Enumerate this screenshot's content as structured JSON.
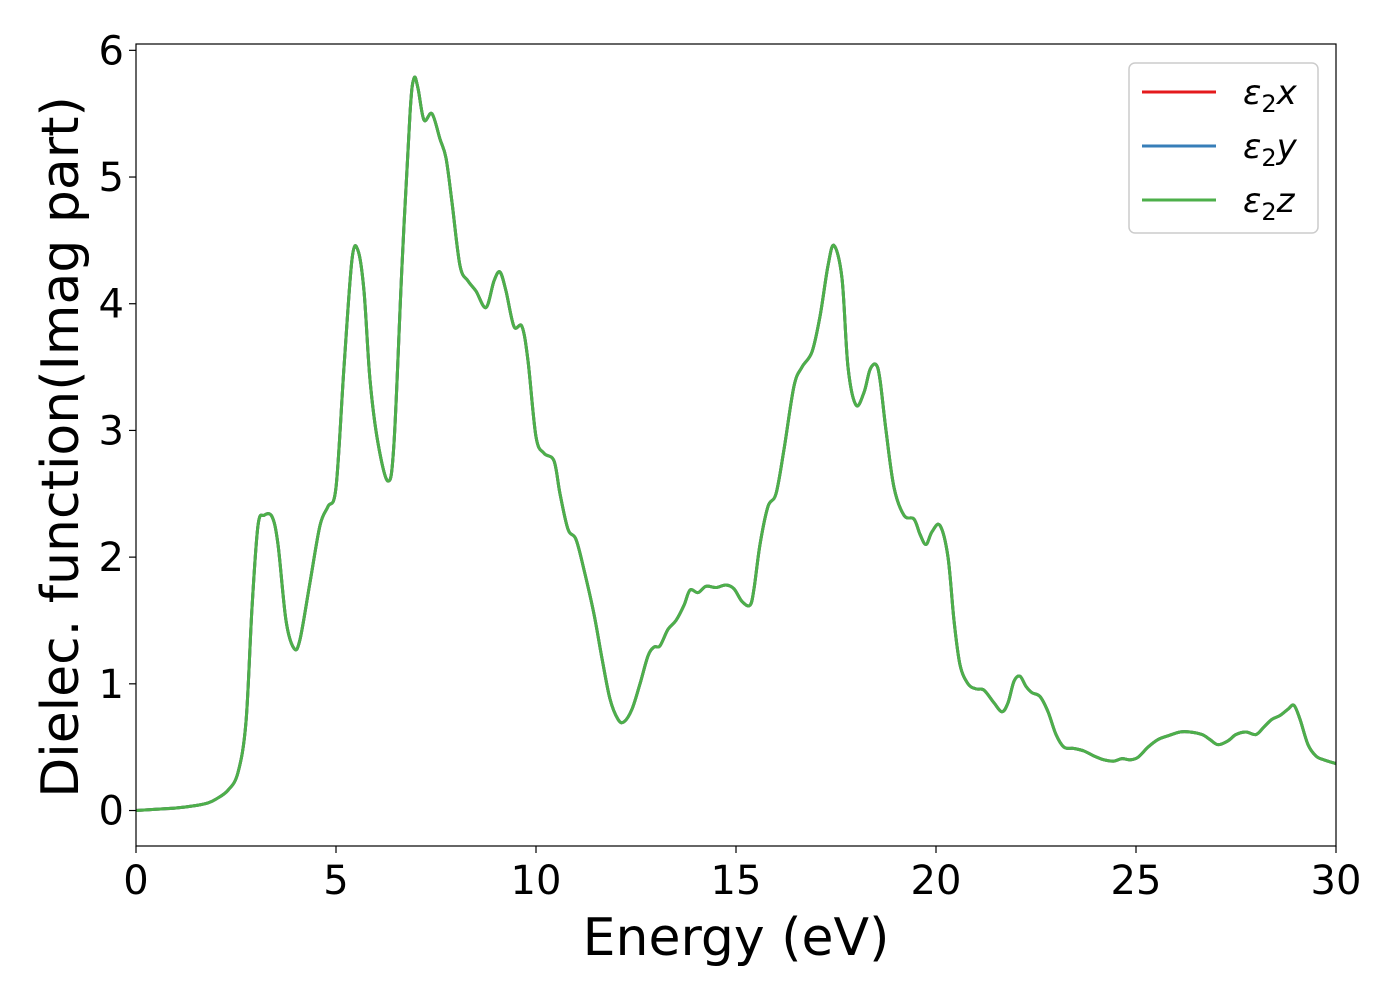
{
  "chart_data": {
    "type": "line",
    "title": "",
    "xlabel": "Energy (eV)",
    "ylabel": "Dielec. function(Imag part)",
    "xlim": [
      0,
      30
    ],
    "ylim": [
      -0.28,
      6.05
    ],
    "xticks": [
      0,
      5,
      10,
      15,
      20,
      25,
      30
    ],
    "yticks": [
      0,
      1,
      2,
      3,
      4,
      5,
      6
    ],
    "grid": false,
    "legend_position": "top-right",
    "series": [
      {
        "name": "ε₂x",
        "legend": {
          "base": "ε",
          "sub": "2",
          "suffix": "x"
        },
        "color": "#e41a1c",
        "x": [
          0,
          0.5,
          1.0,
          1.5,
          1.8,
          2.0,
          2.3,
          2.55,
          2.75,
          2.9,
          3.05,
          3.2,
          3.4,
          3.55,
          3.75,
          3.95,
          4.1,
          4.35,
          4.6,
          4.8,
          5.0,
          5.2,
          5.4,
          5.55,
          5.7,
          5.85,
          6.05,
          6.3,
          6.45,
          6.65,
          6.85,
          6.95,
          7.05,
          7.2,
          7.4,
          7.6,
          7.75,
          7.9,
          8.1,
          8.3,
          8.5,
          8.75,
          8.95,
          9.1,
          9.25,
          9.45,
          9.65,
          9.8,
          10.0,
          10.2,
          10.45,
          10.6,
          10.8,
          11.0,
          11.2,
          11.45,
          11.65,
          11.85,
          12.05,
          12.2,
          12.4,
          12.6,
          12.8,
          12.95,
          13.1,
          13.3,
          13.5,
          13.7,
          13.85,
          14.05,
          14.25,
          14.5,
          14.75,
          14.95,
          15.15,
          15.35,
          15.45,
          15.6,
          15.8,
          16.0,
          16.2,
          16.45,
          16.65,
          16.9,
          17.1,
          17.3,
          17.45,
          17.65,
          17.8,
          18.0,
          18.2,
          18.35,
          18.5,
          18.6,
          18.75,
          18.95,
          19.2,
          19.45,
          19.6,
          19.75,
          19.9,
          20.1,
          20.3,
          20.45,
          20.6,
          20.8,
          21.0,
          21.2,
          21.45,
          21.65,
          21.8,
          21.95,
          22.1,
          22.25,
          22.4,
          22.6,
          22.8,
          23.0,
          23.2,
          23.45,
          23.7,
          23.95,
          24.2,
          24.45,
          24.65,
          24.85,
          25.05,
          25.3,
          25.55,
          25.8,
          26.1,
          26.35,
          26.65,
          26.85,
          27.05,
          27.3,
          27.5,
          27.75,
          28.0,
          28.2,
          28.4,
          28.6,
          28.8,
          28.95,
          29.1,
          29.3,
          29.5,
          29.7,
          30.0
        ],
        "y": [
          0.0,
          0.01,
          0.02,
          0.04,
          0.06,
          0.09,
          0.16,
          0.3,
          0.7,
          1.6,
          2.25,
          2.33,
          2.32,
          2.1,
          1.5,
          1.28,
          1.35,
          1.8,
          2.25,
          2.4,
          2.55,
          3.5,
          4.35,
          4.42,
          4.1,
          3.4,
          2.9,
          2.6,
          2.9,
          4.3,
          5.5,
          5.78,
          5.7,
          5.45,
          5.5,
          5.3,
          5.15,
          4.8,
          4.3,
          4.18,
          4.1,
          3.97,
          4.18,
          4.25,
          4.1,
          3.82,
          3.82,
          3.55,
          2.95,
          2.82,
          2.76,
          2.5,
          2.22,
          2.14,
          1.9,
          1.55,
          1.2,
          0.88,
          0.72,
          0.7,
          0.8,
          1.0,
          1.22,
          1.29,
          1.3,
          1.43,
          1.5,
          1.62,
          1.74,
          1.72,
          1.77,
          1.76,
          1.78,
          1.75,
          1.65,
          1.62,
          1.75,
          2.1,
          2.4,
          2.5,
          2.85,
          3.35,
          3.5,
          3.62,
          3.9,
          4.3,
          4.46,
          4.2,
          3.5,
          3.2,
          3.3,
          3.48,
          3.52,
          3.4,
          3.0,
          2.55,
          2.33,
          2.3,
          2.18,
          2.1,
          2.2,
          2.25,
          2.0,
          1.5,
          1.15,
          1.0,
          0.96,
          0.95,
          0.85,
          0.78,
          0.85,
          1.02,
          1.06,
          0.98,
          0.93,
          0.9,
          0.78,
          0.6,
          0.5,
          0.49,
          0.47,
          0.43,
          0.4,
          0.39,
          0.41,
          0.4,
          0.42,
          0.5,
          0.56,
          0.59,
          0.62,
          0.62,
          0.6,
          0.56,
          0.52,
          0.55,
          0.6,
          0.62,
          0.6,
          0.66,
          0.72,
          0.75,
          0.8,
          0.83,
          0.72,
          0.52,
          0.43,
          0.4,
          0.37
        ]
      },
      {
        "name": "ε₂y",
        "legend": {
          "base": "ε",
          "sub": "2",
          "suffix": "y"
        },
        "color": "#377eb8",
        "same_as": "ε₂x"
      },
      {
        "name": "ε₂z",
        "legend": {
          "base": "ε",
          "sub": "2",
          "suffix": "z"
        },
        "color": "#4daf4a",
        "same_as": "ε₂x"
      }
    ]
  }
}
